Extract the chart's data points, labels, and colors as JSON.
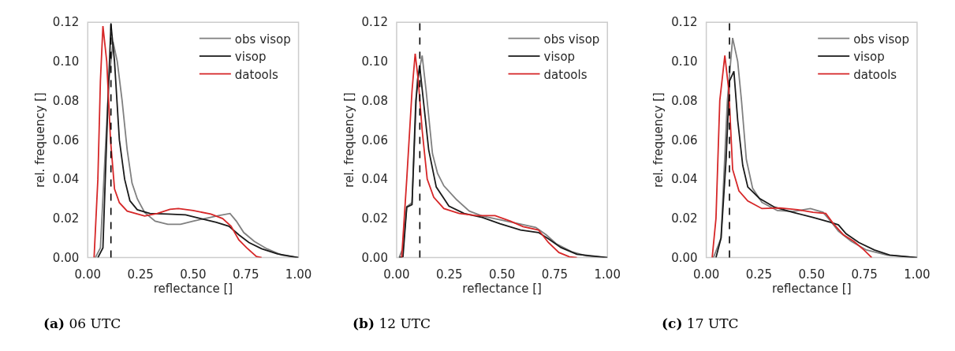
{
  "chart_data": [
    {
      "type": "line",
      "xlabel": "reflectance []",
      "ylabel": "rel. frequency []",
      "annotations": [
        "(a) 06 UTC"
      ],
      "xlim": [
        0,
        1
      ],
      "ylim": [
        0,
        0.12
      ],
      "xticks": [
        {
          "value": 0,
          "label": "0.00"
        },
        {
          "value": 0.25,
          "label": "0.25"
        },
        {
          "value": 0.5,
          "label": "0.50"
        },
        {
          "value": 0.75,
          "label": "0.75"
        },
        {
          "value": 1,
          "label": "1.00"
        }
      ],
      "yticks": [
        {
          "value": 0,
          "label": "0.00"
        },
        {
          "value": 0.02,
          "label": "0.02"
        },
        {
          "value": 0.04,
          "label": "0.04"
        },
        {
          "value": 0.06,
          "label": "0.06"
        },
        {
          "value": 0.08,
          "label": "0.08"
        },
        {
          "value": 0.1,
          "label": "0.10"
        },
        {
          "value": 0.12,
          "label": "0.12"
        }
      ],
      "grid": false,
      "legend": "top right",
      "ref_lines": [
        {
          "axis": "x",
          "value": 0.11,
          "color": "#000000",
          "line_style": "dashed"
        }
      ],
      "series": [
        {
          "name": "obs visop",
          "color": "#808080",
          "x": [
            0.036,
            0.06,
            0.1,
            0.12,
            0.14,
            0.163,
            0.187,
            0.21,
            0.235,
            0.27,
            0.32,
            0.38,
            0.44,
            0.5,
            0.56,
            0.62,
            0.675,
            0.705,
            0.74,
            0.79,
            0.85,
            0.92,
            1.0
          ],
          "values": [
            0,
            0.005,
            0.09,
            0.11,
            0.1,
            0.08,
            0.055,
            0.038,
            0.03,
            0.023,
            0.0186,
            0.017,
            0.017,
            0.0186,
            0.02,
            0.0214,
            0.0225,
            0.0186,
            0.0128,
            0.0083,
            0.0045,
            0.0013,
            0
          ]
        },
        {
          "name": "visop",
          "color": "#1a1a1a",
          "x": [
            0.048,
            0.072,
            0.096,
            0.11,
            0.127,
            0.15,
            0.175,
            0.2,
            0.235,
            0.295,
            0.38,
            0.464,
            0.536,
            0.61,
            0.67,
            0.717,
            0.765,
            0.825,
            0.9,
            1.0
          ],
          "values": [
            0,
            0.005,
            0.08,
            0.119,
            0.1,
            0.06,
            0.04,
            0.029,
            0.0244,
            0.0225,
            0.0222,
            0.0218,
            0.0199,
            0.018,
            0.016,
            0.0116,
            0.0077,
            0.0045,
            0.0019,
            0
          ]
        },
        {
          "name": "datools",
          "color": "#d62728",
          "x": [
            0.03,
            0.048,
            0.06,
            0.072,
            0.09,
            0.108,
            0.127,
            0.15,
            0.187,
            0.27,
            0.33,
            0.39,
            0.43,
            0.5,
            0.584,
            0.64,
            0.68,
            0.717,
            0.753,
            0.8,
            0.825
          ],
          "values": [
            0,
            0.04,
            0.09,
            0.118,
            0.1,
            0.06,
            0.035,
            0.028,
            0.0237,
            0.0212,
            0.0225,
            0.0246,
            0.025,
            0.024,
            0.0222,
            0.0199,
            0.016,
            0.009,
            0.0051,
            0.0006,
            0
          ]
        }
      ]
    },
    {
      "type": "line",
      "xlabel": "reflectance []",
      "ylabel": "rel. frequency []",
      "annotations": [
        "(b) 12 UTC"
      ],
      "xlim": [
        0,
        1
      ],
      "ylim": [
        0,
        0.12
      ],
      "xticks": [
        {
          "value": 0,
          "label": "0.00"
        },
        {
          "value": 0.25,
          "label": "0.25"
        },
        {
          "value": 0.5,
          "label": "0.50"
        },
        {
          "value": 0.75,
          "label": "0.75"
        },
        {
          "value": 1,
          "label": "1.00"
        }
      ],
      "yticks": [
        {
          "value": 0,
          "label": "0.00"
        },
        {
          "value": 0.02,
          "label": "0.02"
        },
        {
          "value": 0.04,
          "label": "0.04"
        },
        {
          "value": 0.06,
          "label": "0.06"
        },
        {
          "value": 0.08,
          "label": "0.08"
        },
        {
          "value": 0.1,
          "label": "0.10"
        },
        {
          "value": 0.12,
          "label": "0.12"
        }
      ],
      "grid": false,
      "legend": "top right",
      "ref_lines": [
        {
          "axis": "x",
          "value": 0.11,
          "color": "#000000",
          "line_style": "dashed"
        }
      ],
      "series": [
        {
          "name": "obs visop",
          "color": "#808080",
          "x": [
            0.012,
            0.03,
            0.048,
            0.073,
            0.097,
            0.121,
            0.14,
            0.17,
            0.194,
            0.224,
            0.285,
            0.345,
            0.406,
            0.49,
            0.588,
            0.66,
            0.71,
            0.757,
            0.83,
            0.9,
            1.0
          ],
          "values": [
            0,
            0.005,
            0.026,
            0.028,
            0.09,
            0.103,
            0.085,
            0.053,
            0.043,
            0.0366,
            0.0295,
            0.0237,
            0.0212,
            0.0193,
            0.0171,
            0.0154,
            0.0116,
            0.0071,
            0.003,
            0.0009,
            0
          ]
        },
        {
          "name": "visop",
          "color": "#1a1a1a",
          "x": [
            0.012,
            0.03,
            0.048,
            0.073,
            0.091,
            0.109,
            0.127,
            0.152,
            0.188,
            0.248,
            0.32,
            0.406,
            0.49,
            0.588,
            0.673,
            0.72,
            0.78,
            0.855,
            1.0
          ],
          "values": [
            0,
            0.0005,
            0.0257,
            0.027,
            0.08,
            0.098,
            0.08,
            0.055,
            0.036,
            0.0263,
            0.0225,
            0.0205,
            0.0173,
            0.0141,
            0.0128,
            0.0096,
            0.0051,
            0.0017,
            0
          ]
        },
        {
          "name": "datools",
          "color": "#d62728",
          "x": [
            0.024,
            0.048,
            0.073,
            0.088,
            0.103,
            0.121,
            0.145,
            0.176,
            0.224,
            0.297,
            0.38,
            0.467,
            0.54,
            0.6,
            0.673,
            0.72,
            0.77,
            0.82,
            0.855
          ],
          "values": [
            0,
            0.04,
            0.085,
            0.104,
            0.09,
            0.065,
            0.04,
            0.0308,
            0.025,
            0.0225,
            0.0214,
            0.0214,
            0.0186,
            0.0158,
            0.0141,
            0.0077,
            0.0026,
            0.0004,
            0
          ]
        }
      ]
    },
    {
      "type": "line",
      "xlabel": "reflectance []",
      "ylabel": "rel. frequency []",
      "annotations": [
        "(c) 17 UTC"
      ],
      "xlim": [
        0,
        1
      ],
      "ylim": [
        0,
        0.12
      ],
      "xticks": [
        {
          "value": 0,
          "label": "0.00"
        },
        {
          "value": 0.25,
          "label": "0.25"
        },
        {
          "value": 0.5,
          "label": "0.50"
        },
        {
          "value": 0.75,
          "label": "0.75"
        },
        {
          "value": 1,
          "label": "1.00"
        }
      ],
      "yticks": [
        {
          "value": 0,
          "label": "0.00"
        },
        {
          "value": 0.02,
          "label": "0.02"
        },
        {
          "value": 0.04,
          "label": "0.04"
        },
        {
          "value": 0.06,
          "label": "0.06"
        },
        {
          "value": 0.08,
          "label": "0.08"
        },
        {
          "value": 0.1,
          "label": "0.10"
        },
        {
          "value": 0.12,
          "label": "0.12"
        }
      ],
      "grid": false,
      "legend": "top right",
      "ref_lines": [
        {
          "axis": "x",
          "value": 0.11,
          "color": "#000000",
          "line_style": "dashed"
        }
      ],
      "series": [
        {
          "name": "obs visop",
          "color": "#808080",
          "x": [
            0.034,
            0.07,
            0.1,
            0.125,
            0.149,
            0.167,
            0.19,
            0.22,
            0.264,
            0.337,
            0.41,
            0.494,
            0.554,
            0.59,
            0.627,
            0.688,
            0.76,
            0.857,
            1.0
          ],
          "values": [
            0,
            0.01,
            0.08,
            0.112,
            0.1,
            0.08,
            0.05,
            0.0353,
            0.0282,
            0.024,
            0.0235,
            0.025,
            0.0231,
            0.0186,
            0.0135,
            0.0083,
            0.0039,
            0.0013,
            0
          ]
        },
        {
          "name": "visop",
          "color": "#1a1a1a",
          "x": [
            0.046,
            0.07,
            0.094,
            0.11,
            0.131,
            0.149,
            0.173,
            0.197,
            0.252,
            0.324,
            0.41,
            0.506,
            0.59,
            0.627,
            0.663,
            0.724,
            0.797,
            0.87,
            1.0
          ],
          "values": [
            0,
            0.01,
            0.05,
            0.09,
            0.095,
            0.07,
            0.047,
            0.036,
            0.0302,
            0.0257,
            0.0231,
            0.0205,
            0.018,
            0.0167,
            0.0122,
            0.0077,
            0.0039,
            0.0013,
            0
          ]
        },
        {
          "name": "datools",
          "color": "#d62728",
          "x": [
            0.028,
            0.046,
            0.064,
            0.088,
            0.107,
            0.125,
            0.155,
            0.197,
            0.264,
            0.349,
            0.433,
            0.506,
            0.567,
            0.603,
            0.651,
            0.7,
            0.748,
            0.785
          ],
          "values": [
            0,
            0.02,
            0.08,
            0.103,
            0.085,
            0.045,
            0.034,
            0.0289,
            0.025,
            0.0253,
            0.0244,
            0.0231,
            0.0225,
            0.0173,
            0.0116,
            0.0083,
            0.0039,
            0
          ]
        }
      ]
    }
  ]
}
